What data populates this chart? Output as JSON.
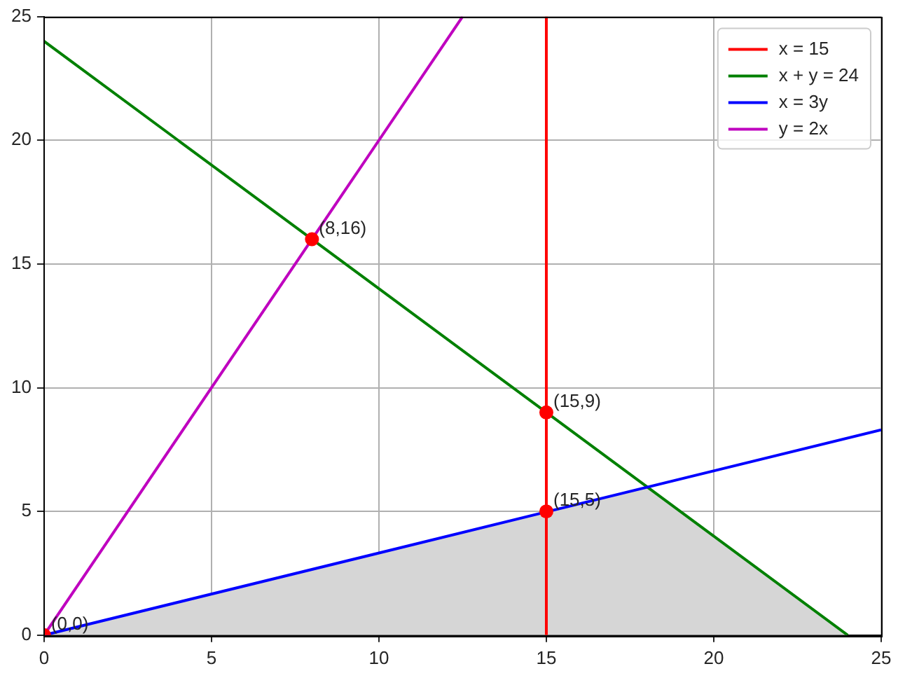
{
  "chart_data": {
    "type": "line",
    "xlim": [
      0,
      25
    ],
    "ylim": [
      0,
      25
    ],
    "xticks": [
      0,
      5,
      10,
      15,
      20,
      25
    ],
    "yticks": [
      0,
      5,
      10,
      15,
      20,
      25
    ],
    "grid": true,
    "legend": "top right",
    "series": [
      {
        "type": "area",
        "color": "#d6d6d6",
        "x": [
          0,
          18,
          24
        ],
        "values": [
          0,
          6,
          0
        ]
      },
      {
        "name": "x = 15",
        "color": "#ff0000",
        "x": [
          15,
          15
        ],
        "values": [
          0,
          25
        ]
      },
      {
        "name": "x + y = 24",
        "color": "#008000",
        "x": [
          0,
          24
        ],
        "values": [
          24,
          0
        ]
      },
      {
        "name": "x = 3y",
        "color": "#0000ff",
        "x": [
          0,
          25
        ],
        "values": [
          0,
          8.3
        ]
      },
      {
        "name": "y = 2x",
        "color": "#bf00bf",
        "x": [
          0,
          12.5
        ],
        "values": [
          0,
          25
        ]
      },
      {
        "type": "scatter",
        "color": "#ff0000",
        "marker": "circle",
        "x": [
          0,
          8,
          15,
          15
        ],
        "values": [
          0,
          16,
          9,
          5
        ]
      }
    ],
    "annotations": [
      {
        "text": "(0,0)",
        "x": 0,
        "y": 0
      },
      {
        "text": "(8,16)",
        "x": 8,
        "y": 16
      },
      {
        "text": "(15,9)",
        "x": 15,
        "y": 9
      },
      {
        "text": "(15,5)",
        "x": 15,
        "y": 5
      }
    ]
  }
}
